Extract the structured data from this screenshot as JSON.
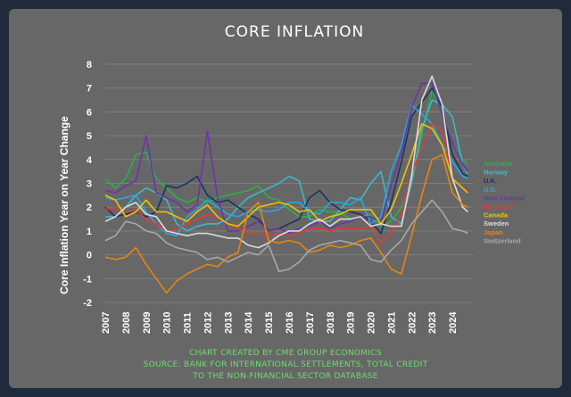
{
  "chart_data": {
    "type": "line",
    "title": "CORE INFLATION",
    "ylabel": "Core Inflation Year on Year Change",
    "xlabel": "",
    "ylim": [
      -2,
      8
    ],
    "yticks": [
      8,
      7,
      6,
      5,
      4,
      3,
      2,
      1,
      0,
      -1,
      -2
    ],
    "xlim": [
      2007,
      2025
    ],
    "xticks": [
      "2007",
      "2008",
      "2009",
      "2010",
      "2011",
      "2012",
      "2013",
      "2014",
      "2015",
      "2016",
      "2017",
      "2018",
      "2019",
      "2020",
      "2021",
      "2022",
      "2023",
      "2024"
    ],
    "grid": true,
    "legend_position": "right",
    "x": [
      2007,
      2007.5,
      2008,
      2008.5,
      2009,
      2009.5,
      2010,
      2010.5,
      2011,
      2011.5,
      2012,
      2012.5,
      2013,
      2013.5,
      2014,
      2014.5,
      2015,
      2015.5,
      2016,
      2016.5,
      2017,
      2017.5,
      2018,
      2018.5,
      2019,
      2019.5,
      2020,
      2020.5,
      2021,
      2021.5,
      2022,
      2022.5,
      2023,
      2023.5,
      2024,
      2024.5,
      2024.75
    ],
    "series": [
      {
        "name": "Australia",
        "color": "#2bb04a",
        "values": [
          3.2,
          2.8,
          3.2,
          4.2,
          4.3,
          3.2,
          2.8,
          2.4,
          2.2,
          2.4,
          2.2,
          2.4,
          2.5,
          2.6,
          2.7,
          2.9,
          2.4,
          2.3,
          1.9,
          1.6,
          1.6,
          1.9,
          1.8,
          1.8,
          1.5,
          1.6,
          1.7,
          1.2,
          1.4,
          2.0,
          3.0,
          5.0,
          6.9,
          6.0,
          4.7,
          4.0,
          3.8
        ]
      },
      {
        "name": "Norway",
        "color": "#3fb8c8",
        "values": [
          1.6,
          1.6,
          2.0,
          2.5,
          2.8,
          2.6,
          2.3,
          1.3,
          1.0,
          1.2,
          1.3,
          1.3,
          1.5,
          2.0,
          2.4,
          2.6,
          2.8,
          3.0,
          3.3,
          3.1,
          1.5,
          1.4,
          1.4,
          1.9,
          2.4,
          2.3,
          3.0,
          3.5,
          1.6,
          1.3,
          3.0,
          5.3,
          6.5,
          6.3,
          5.8,
          3.8,
          3.4
        ]
      },
      {
        "name": "U.K.",
        "color": "#1b3560",
        "values": [
          2.0,
          1.6,
          1.7,
          1.8,
          1.6,
          1.8,
          2.9,
          2.8,
          3.0,
          3.3,
          2.5,
          2.2,
          2.3,
          2.0,
          1.7,
          1.5,
          1.0,
          1.1,
          1.3,
          1.5,
          2.4,
          2.7,
          2.2,
          1.9,
          1.8,
          1.7,
          1.4,
          0.9,
          2.2,
          3.9,
          5.8,
          6.4,
          7.0,
          6.2,
          4.2,
          3.4,
          3.3
        ]
      },
      {
        "name": "U.S.",
        "color": "#27a8e6",
        "values": [
          2.4,
          2.3,
          2.4,
          2.5,
          1.8,
          1.3,
          0.9,
          0.8,
          1.6,
          1.9,
          2.3,
          2.0,
          1.7,
          1.6,
          1.8,
          1.9,
          1.8,
          1.9,
          2.2,
          2.2,
          1.8,
          1.7,
          2.2,
          2.2,
          2.1,
          2.4,
          1.3,
          1.6,
          3.5,
          4.6,
          6.3,
          5.9,
          5.5,
          4.6,
          3.9,
          3.3,
          3.2
        ]
      },
      {
        "name": "New Zealand",
        "color": "#6a35a8",
        "values": [
          2.7,
          2.6,
          2.9,
          3.1,
          5.0,
          2.6,
          2.4,
          2.2,
          1.8,
          2.1,
          5.2,
          2.4,
          1.0,
          1.0,
          1.2,
          1.4,
          1.0,
          1.1,
          0.9,
          1.1,
          1.2,
          1.4,
          1.1,
          1.3,
          1.4,
          1.6,
          1.6,
          1.4,
          2.9,
          4.3,
          6.2,
          7.2,
          7.2,
          5.9,
          4.7,
          3.8,
          3.5
        ]
      },
      {
        "name": "Eurozone",
        "color": "#e23a3a",
        "values": [
          1.9,
          2.0,
          1.8,
          1.9,
          1.5,
          1.3,
          1.0,
          1.1,
          1.3,
          1.5,
          1.7,
          1.6,
          1.3,
          1.1,
          0.9,
          0.9,
          0.8,
          0.9,
          0.8,
          0.9,
          1.1,
          1.1,
          1.0,
          1.1,
          1.1,
          1.1,
          1.2,
          0.5,
          0.9,
          1.7,
          3.4,
          4.5,
          5.5,
          5.2,
          3.2,
          2.8,
          2.7
        ]
      },
      {
        "name": "Canada",
        "color": "#f2c200",
        "values": [
          2.5,
          2.3,
          1.6,
          1.8,
          2.3,
          1.8,
          1.8,
          1.6,
          1.4,
          1.8,
          2.1,
          1.6,
          1.3,
          1.2,
          1.6,
          2.0,
          2.1,
          2.2,
          2.1,
          1.8,
          1.9,
          1.4,
          1.6,
          1.7,
          1.9,
          1.9,
          1.9,
          1.3,
          1.9,
          3.0,
          4.2,
          5.5,
          5.3,
          4.6,
          3.2,
          2.8,
          2.6
        ]
      },
      {
        "name": "Sweden",
        "color": "#dcdcdc",
        "values": [
          1.4,
          1.6,
          2.0,
          2.2,
          1.7,
          1.6,
          1.0,
          0.9,
          0.8,
          0.9,
          0.9,
          0.8,
          0.7,
          0.7,
          0.4,
          0.3,
          0.5,
          0.8,
          1.0,
          1.0,
          1.3,
          1.5,
          1.2,
          1.5,
          1.5,
          1.6,
          1.2,
          1.3,
          1.2,
          1.2,
          3.3,
          6.5,
          7.5,
          6.3,
          3.2,
          2.0,
          1.8
        ]
      },
      {
        "name": "Japan",
        "color": "#e8850e",
        "values": [
          -0.1,
          -0.2,
          -0.1,
          0.3,
          -0.4,
          -1.0,
          -1.6,
          -1.1,
          -0.8,
          -0.6,
          -0.4,
          -0.5,
          -0.1,
          0.1,
          1.8,
          2.2,
          0.6,
          0.5,
          0.6,
          0.5,
          0.1,
          0.2,
          0.4,
          0.3,
          0.4,
          0.6,
          0.7,
          0.1,
          -0.6,
          -0.8,
          0.8,
          2.5,
          4.0,
          4.2,
          2.6,
          2.1,
          2.0
        ]
      },
      {
        "name": "Switzerland",
        "color": "#a8a8a8",
        "values": [
          0.6,
          0.8,
          1.4,
          1.3,
          1.0,
          0.9,
          0.5,
          0.3,
          0.2,
          0.1,
          -0.2,
          -0.1,
          -0.3,
          -0.1,
          0.1,
          0.0,
          0.4,
          -0.7,
          -0.6,
          -0.3,
          0.2,
          0.4,
          0.5,
          0.6,
          0.5,
          0.4,
          -0.2,
          -0.3,
          0.2,
          0.6,
          1.3,
          1.8,
          2.3,
          1.8,
          1.1,
          1.0,
          0.9
        ]
      }
    ]
  },
  "credits": [
    "CHART CREATED BY CME GROUP ECONOMICS",
    "SOURCE: BANK FOR INTERNATIONAL SETTLEMENTS, TOTAL CREDIT",
    "TO THE NON-FINANCIAL SECTOR DATABASE"
  ]
}
